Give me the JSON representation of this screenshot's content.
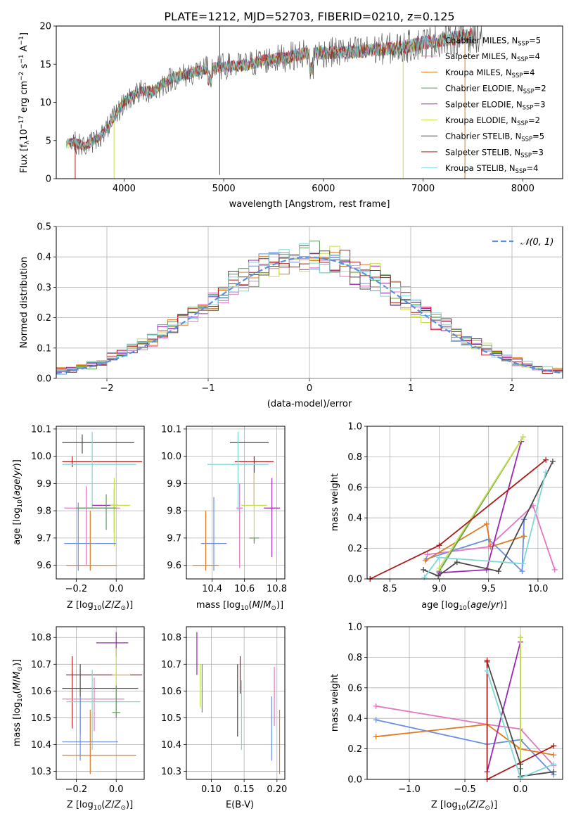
{
  "figure_title": "PLATE=1212, MJD=52703, FIBERID=0210, z=0.125",
  "colors": {
    "Chabrier MILES": "#6a8fe3",
    "Salpeter MILES": "#e377c2",
    "Kroupa MILES": "#e07b20",
    "Chabrier ELODIE": "#5a9a5a",
    "Salpeter ELODIE": "#9a28b0",
    "Kroupa ELODIE": "#c8e04a",
    "Chabrier STELIB": "#4a4a4a",
    "Salpeter STELIB": "#b01a1a",
    "Kroupa STELIB": "#7fd8d8",
    "normal": "#5b8ee0"
  },
  "chart_data": [
    {
      "type": "line",
      "id": "spectrum",
      "title": "PLATE=1212, MJD=52703, FIBERID=0210, z=0.125",
      "xlabel": "wavelength [Angstrom, rest frame]",
      "ylabel": "Flux [f_λ 10^-17 erg cm^-2 s^-1 A^-1]",
      "xlim": [
        3320,
        8400
      ],
      "ylim": [
        0,
        20
      ],
      "xticks": [
        4000,
        5000,
        6000,
        7000,
        8000
      ],
      "yticks": [
        0,
        5,
        10,
        15,
        20
      ],
      "legend_position": "top-right",
      "series": [
        {
          "name": "Chabrier MILES, N_SSP=5",
          "color": "#6a8fe3"
        },
        {
          "name": "Salpeter MILES, N_SSP=4",
          "color": "#e377c2"
        },
        {
          "name": "Kroupa MILES, N_SSP=4",
          "color": "#e07b20"
        },
        {
          "name": "Chabrier ELODIE, N_SSP=2",
          "color": "#5a9a5a"
        },
        {
          "name": "Salpeter ELODIE, N_SSP=3",
          "color": "#9a28b0"
        },
        {
          "name": "Kroupa ELODIE, N_SSP=2",
          "color": "#c8e04a"
        },
        {
          "name": "Chabrier STELIB, N_SSP=5",
          "color": "#4a4a4a"
        },
        {
          "name": "Salpeter STELIB, N_SSP=3",
          "color": "#b01a1a"
        },
        {
          "name": "Kroupa STELIB, N_SSP=4",
          "color": "#7fd8d8"
        }
      ],
      "continuum": {
        "x": [
          3400,
          3500,
          3600,
          3700,
          3800,
          3900,
          4000,
          4100,
          4200,
          4300,
          4400,
          4500,
          4600,
          4700,
          4800,
          5000,
          5200,
          5400,
          5600,
          5800,
          6000,
          6200,
          6400,
          6600,
          6800,
          7000,
          7200,
          7400,
          7600
        ],
        "y": [
          4.5,
          4.8,
          4.2,
          5.0,
          6.0,
          8.0,
          10.0,
          11.0,
          11.5,
          11.5,
          12.5,
          13.3,
          13.5,
          14.0,
          14.3,
          14.7,
          14.8,
          15.5,
          15.8,
          16.4,
          16.5,
          16.6,
          16.7,
          17.0,
          17.2,
          17.8,
          18.2,
          18.6,
          18.9
        ]
      },
      "spikes_observed": [
        {
          "x": 3510,
          "y": 0
        },
        {
          "x": 3900,
          "y": 0
        },
        {
          "x": 4960,
          "y": 0.5
        },
        {
          "x": 4960,
          "y": 20
        },
        {
          "x": 6800,
          "y": 0
        },
        {
          "x": 7420,
          "y": 0
        }
      ]
    },
    {
      "type": "step",
      "id": "residuals",
      "xlabel": "(data-model)/error",
      "ylabel": "Normed distribution",
      "xlim": [
        -2.5,
        2.5
      ],
      "ylim": [
        0,
        0.5
      ],
      "xticks": [
        -2,
        -1,
        0,
        1,
        2
      ],
      "yticks": [
        0,
        0.1,
        0.2,
        0.3,
        0.4,
        0.5
      ],
      "bin_width": 0.1,
      "legend": "N(0,1)",
      "legend_position": "top-right",
      "normal_curve": {
        "mean": 0,
        "sigma": 1,
        "style": "dashed"
      },
      "series_count": 9
    },
    {
      "type": "errorbar",
      "id": "age_vs_Z",
      "xlabel": "Z [log10(Z/Z☉)]",
      "ylabel": "age [log10(age/yr)]",
      "xlim": [
        -0.3,
        0.14
      ],
      "ylim": [
        9.55,
        10.11
      ],
      "xticks": [
        -0.2,
        0.0
      ],
      "yticks": [
        9.6,
        9.7,
        9.8,
        9.9,
        10.0,
        10.1
      ],
      "points": [
        {
          "model": "Chabrier STELIB",
          "x": -0.17,
          "xerr": [
            0.1,
            0.26
          ],
          "y": 10.05,
          "yerr": [
            0.04,
            0.03
          ]
        },
        {
          "model": "Salpeter STELIB",
          "x": -0.22,
          "xerr": [
            0.05,
            0.35
          ],
          "y": 9.98,
          "yerr": [
            0.02,
            0.02
          ]
        },
        {
          "model": "Kroupa STELIB",
          "x": -0.12,
          "xerr": [
            0.15,
            0.22
          ],
          "y": 9.97,
          "yerr": [
            0.16,
            0.12
          ]
        },
        {
          "model": "Salpeter MILES",
          "x": -0.15,
          "xerr": [
            0.11,
            0.17
          ],
          "y": 9.81,
          "yerr": [
            0.21,
            0.08
          ]
        },
        {
          "model": "Salpeter ELODIE",
          "x": -0.01,
          "xerr": [
            0.11,
            0.02
          ],
          "y": 9.82,
          "yerr": [
            0.1,
            0.06
          ]
        },
        {
          "model": "Kroupa ELODIE",
          "x": -0.01,
          "xerr": [
            0.02,
            0.08
          ],
          "y": 9.82,
          "yerr": [
            0.15,
            0.1
          ]
        },
        {
          "model": "Chabrier MILES",
          "x": -0.19,
          "xerr": [
            0.07,
            0.19
          ],
          "y": 9.68,
          "yerr": [
            0.1,
            0.15
          ]
        },
        {
          "model": "Kroupa MILES",
          "x": -0.13,
          "xerr": [
            0.12,
            0.13
          ],
          "y": 9.6,
          "yerr": [
            0.02,
            0.2
          ]
        },
        {
          "model": "Chabrier ELODIE",
          "x": -0.05,
          "xerr": [
            0.15,
            0.05
          ],
          "y": 9.81,
          "yerr": [
            0.08,
            0.05
          ]
        }
      ]
    },
    {
      "type": "errorbar",
      "id": "age_vs_mass",
      "xlabel": "mass [log10(M/M☉)]",
      "ylabel": "",
      "xlim": [
        10.24,
        10.85
      ],
      "ylim": [
        9.55,
        10.11
      ],
      "xticks": [
        10.4,
        10.6,
        10.8
      ],
      "yticks": [
        9.6,
        9.7,
        9.8,
        9.9,
        10.0,
        10.1
      ],
      "points": [
        {
          "model": "Chabrier STELIB",
          "x": 10.61,
          "xerr": [
            0.1,
            0.14
          ],
          "y": 10.05,
          "yerr": [
            0.0,
            0.0
          ]
        },
        {
          "model": "Salpeter STELIB",
          "x": 10.66,
          "xerr": [
            0.12,
            0.12
          ],
          "y": 9.98,
          "yerr": [
            0.16,
            0.02
          ]
        },
        {
          "model": "Kroupa STELIB",
          "x": 10.56,
          "xerr": [
            0.19,
            0.19
          ],
          "y": 9.97,
          "yerr": [
            0.17,
            0.12
          ]
        },
        {
          "model": "Salpeter MILES",
          "x": 10.57,
          "xerr": [
            0.02,
            0.02
          ],
          "y": 9.81,
          "yerr": [
            0.22,
            0.09
          ]
        },
        {
          "model": "Salpeter ELODIE",
          "x": 10.77,
          "xerr": [
            0.05,
            0.05
          ],
          "y": 9.81,
          "yerr": [
            0.18,
            0.11
          ]
        },
        {
          "model": "Kroupa ELODIE",
          "x": 10.66,
          "xerr": [
            0.08,
            0.08
          ],
          "y": 9.82,
          "yerr": [
            0.13,
            0.12
          ]
        },
        {
          "model": "Chabrier MILES",
          "x": 10.41,
          "xerr": [
            0.08,
            0.08
          ],
          "y": 9.68,
          "yerr": [
            0.1,
            0.17
          ]
        },
        {
          "model": "Kroupa MILES",
          "x": 10.36,
          "xerr": [
            0.08,
            0.08
          ],
          "y": 9.6,
          "yerr": [
            0.02,
            0.2
          ]
        },
        {
          "model": "Chabrier ELODIE",
          "x": 10.66,
          "xerr": [
            0.03,
            0.03
          ],
          "y": 9.7,
          "yerr": [
            0.02,
            0.0
          ]
        }
      ]
    },
    {
      "type": "line",
      "id": "mass_weight_vs_age",
      "xlabel": "age [log10(age/yr)]",
      "ylabel": "mass weight",
      "xlim": [
        8.27,
        10.25
      ],
      "ylim": [
        0,
        1.0
      ],
      "xticks": [
        8.5,
        9.0,
        9.5,
        10.0
      ],
      "yticks": [
        0,
        0.2,
        0.4,
        0.6,
        0.8,
        1.0
      ],
      "series": [
        {
          "model": "Chabrier MILES",
          "x": [
            8.87,
            9.5,
            9.84,
            9.86
          ],
          "y": [
            0.13,
            0.26,
            0.05,
            0.39
          ]
        },
        {
          "model": "Salpeter MILES",
          "x": [
            8.88,
            9.5,
            9.95,
            10.17
          ],
          "y": [
            0.16,
            0.21,
            0.48,
            0.06
          ]
        },
        {
          "model": "Kroupa MILES",
          "x": [
            8.86,
            9.48,
            9.52,
            9.86
          ],
          "y": [
            0.12,
            0.36,
            0.21,
            0.28
          ]
        },
        {
          "model": "Chabrier ELODIE",
          "x": [
            9.0,
            9.85
          ],
          "y": [
            0.05,
            0.93
          ]
        },
        {
          "model": "Salpeter ELODIE",
          "x": [
            9.0,
            9.48,
            9.83
          ],
          "y": [
            0.04,
            0.06,
            0.9
          ]
        },
        {
          "model": "Kroupa ELODIE",
          "x": [
            9.0,
            9.85
          ],
          "y": [
            0.07,
            0.93
          ]
        },
        {
          "model": "Chabrier STELIB",
          "x": [
            8.84,
            8.99,
            9.18,
            9.6,
            10.15
          ],
          "y": [
            0.06,
            0.02,
            0.11,
            0.05,
            0.77
          ]
        },
        {
          "model": "Salpeter STELIB",
          "x": [
            8.3,
            9.0,
            10.08
          ],
          "y": [
            0.0,
            0.22,
            0.78
          ]
        },
        {
          "model": "Kroupa STELIB",
          "x": [
            8.85,
            9.0,
            9.85,
            10.08
          ],
          "y": [
            0.01,
            0.14,
            0.1,
            0.7
          ]
        }
      ]
    },
    {
      "type": "errorbar",
      "id": "mass_vs_Z",
      "xlabel": "Z [log10(Z/Z☉)]",
      "ylabel": "mass [log10(M/M☉)]",
      "xlim": [
        -0.3,
        0.14
      ],
      "ylim": [
        10.27,
        10.84
      ],
      "xticks": [
        -0.2,
        0.0
      ],
      "yticks": [
        10.3,
        10.4,
        10.5,
        10.6,
        10.7,
        10.8
      ],
      "points": [
        {
          "model": "Salpeter ELODIE",
          "x": 0.0,
          "xerr": [
            0.1,
            0.06
          ],
          "y": 10.78,
          "yerr": [
            0.05,
            0.04
          ]
        },
        {
          "model": "Salpeter STELIB",
          "x": -0.22,
          "xerr": [
            0.03,
            0.35
          ],
          "y": 10.66,
          "yerr": [
            0.2,
            0.07
          ]
        },
        {
          "model": "Kroupa ELODIE",
          "x": 0.0,
          "xerr": [
            0.02,
            0.07
          ],
          "y": 10.66,
          "yerr": [
            0.13,
            0.1
          ]
        },
        {
          "model": "Chabrier STELIB",
          "x": -0.18,
          "xerr": [
            0.09,
            0.29
          ],
          "y": 10.61,
          "yerr": [
            0.17,
            0.09
          ]
        },
        {
          "model": "Salpeter MILES",
          "x": -0.11,
          "xerr": [
            0.16,
            0.15
          ],
          "y": 10.57,
          "yerr": [
            0.12,
            0.08
          ]
        },
        {
          "model": "Kroupa STELIB",
          "x": -0.12,
          "xerr": [
            0.13,
            0.24
          ],
          "y": 10.56,
          "yerr": [
            0.18,
            0.12
          ]
        },
        {
          "model": "Chabrier MILES",
          "x": -0.18,
          "xerr": [
            0.09,
            0.19
          ],
          "y": 10.41,
          "yerr": [
            0.07,
            0.17
          ]
        },
        {
          "model": "Kroupa MILES",
          "x": -0.13,
          "xerr": [
            0.14,
            0.23
          ],
          "y": 10.36,
          "yerr": [
            0.07,
            0.17
          ]
        },
        {
          "model": "Chabrier ELODIE",
          "x": 0.0,
          "xerr": [
            0.02,
            0.02
          ],
          "y": 10.52,
          "yerr": [
            0.02,
            0.1
          ]
        }
      ]
    },
    {
      "type": "errorbar",
      "id": "mass_vs_ebv",
      "xlabel": "E(B-V)",
      "ylabel": "",
      "xlim": [
        0.062,
        0.212
      ],
      "ylim": [
        10.27,
        10.84
      ],
      "xticks": [
        0.1,
        0.15,
        0.2
      ],
      "yticks": [
        10.3,
        10.4,
        10.5,
        10.6,
        10.7,
        10.8
      ],
      "points": [
        {
          "model": "Salpeter ELODIE",
          "x": 0.078,
          "y": 10.74,
          "yerr": [
            0.08,
            0.08
          ]
        },
        {
          "model": "Kroupa ELODIE",
          "x": 0.083,
          "y": 10.62,
          "yerr": [
            0.08,
            0.08
          ]
        },
        {
          "model": "Chabrier ELODIE",
          "x": 0.086,
          "y": 10.61,
          "yerr": [
            0.09,
            0.09
          ]
        },
        {
          "model": "Chabrier STELIB",
          "x": 0.14,
          "y": 10.56,
          "yerr": [
            0.13,
            0.14
          ]
        },
        {
          "model": "Salpeter STELIB",
          "x": 0.144,
          "y": 10.66,
          "yerr": [
            0.07,
            0.07
          ]
        },
        {
          "model": "Kroupa STELIB",
          "x": 0.146,
          "y": 10.51,
          "yerr": [
            0.13,
            0.13
          ]
        },
        {
          "model": "Chabrier MILES",
          "x": 0.192,
          "y": 10.46,
          "yerr": [
            0.12,
            0.12
          ]
        },
        {
          "model": "Salpeter MILES",
          "x": 0.196,
          "y": 10.58,
          "yerr": [
            0.11,
            0.11
          ]
        },
        {
          "model": "Kroupa MILES",
          "x": 0.204,
          "y": 10.41,
          "yerr": [
            0.12,
            0.12
          ]
        }
      ]
    },
    {
      "type": "line",
      "id": "mass_weight_vs_Z",
      "xlabel": "Z [log10(Z/Z☉)]",
      "ylabel": "mass weight",
      "xlim": [
        -1.38,
        0.38
      ],
      "ylim": [
        0,
        1.0
      ],
      "xticks": [
        -1.0,
        -0.5,
        0.0
      ],
      "yticks": [
        0,
        0.2,
        0.4,
        0.6,
        0.8,
        1.0
      ],
      "series": [
        {
          "model": "Chabrier MILES",
          "x": [
            -1.3,
            -0.3,
            0.0,
            0.3
          ],
          "y": [
            0.39,
            0.23,
            0.26,
            0.03
          ]
        },
        {
          "model": "Salpeter MILES",
          "x": [
            -1.3,
            -0.3,
            0.0,
            0.3
          ],
          "y": [
            0.48,
            0.36,
            0.33,
            0.09
          ]
        },
        {
          "model": "Kroupa MILES",
          "x": [
            -1.3,
            -0.3,
            0.0,
            0.3
          ],
          "y": [
            0.28,
            0.36,
            0.2,
            0.16
          ]
        },
        {
          "model": "Chabrier ELODIE",
          "x": [
            0.0,
            0.0
          ],
          "y": [
            0.07,
            0.93
          ]
        },
        {
          "model": "Salpeter ELODIE",
          "x": [
            -0.3,
            0.0
          ],
          "y": [
            0.05,
            0.9
          ]
        },
        {
          "model": "Kroupa ELODIE",
          "x": [
            0.0,
            0.0
          ],
          "y": [
            0.01,
            0.93
          ]
        },
        {
          "model": "Chabrier STELIB",
          "x": [
            -0.3,
            0.0,
            0.0,
            0.3
          ],
          "y": [
            0.77,
            0.1,
            0.02,
            0.05
          ]
        },
        {
          "model": "Salpeter STELIB",
          "x": [
            -0.3,
            -0.3,
            0.3
          ],
          "y": [
            0.78,
            0.0,
            0.22
          ]
        },
        {
          "model": "Kroupa STELIB",
          "x": [
            -0.3,
            0.0,
            0.3
          ],
          "y": [
            0.71,
            0.01,
            0.1
          ]
        }
      ]
    }
  ],
  "labels": {
    "spectrum_ylabel": "Flux [f",
    "resid_xlabel": "(data-model)/error",
    "resid_ylabel": "Normed distribution",
    "normal_legend": "N(0,1)"
  }
}
